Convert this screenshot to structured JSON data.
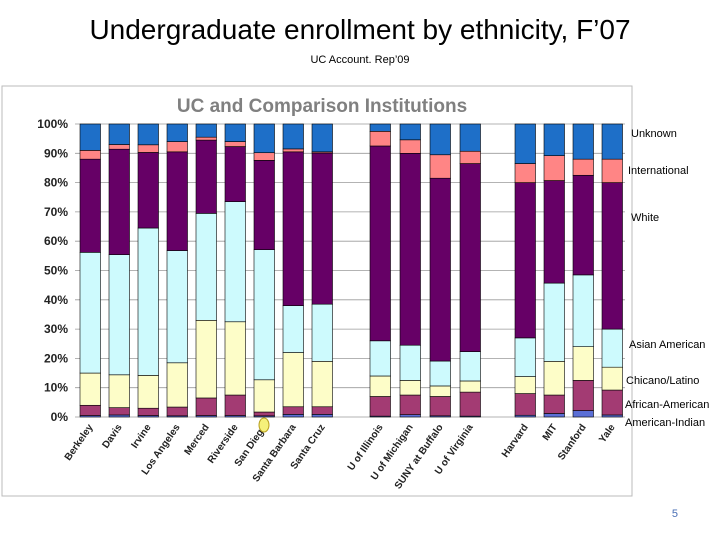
{
  "slide": {
    "title": "Undergraduate enrollment by ethnicity, F’07",
    "subtitle": "UC Account. Rep’09",
    "page_number": "5"
  },
  "chart_data": {
    "type": "bar",
    "stacked": true,
    "title": "UC and Comparison Institutions",
    "ylim": [
      0,
      100
    ],
    "yticks": [
      "0%",
      "10%",
      "20%",
      "30%",
      "40%",
      "50%",
      "60%",
      "70%",
      "80%",
      "90%",
      "100%"
    ],
    "legend_position": "right",
    "categories": [
      "Berkeley",
      "Davis",
      "Irvine",
      "Los Angeles",
      "Merced",
      "Riverside",
      "San Diego",
      "Santa Barbara",
      "Santa Cruz",
      "U of Illinois",
      "U of Michigan",
      "SUNY at Buffalo",
      "U of Virginia",
      "Harvard",
      "MIT",
      "Stanford",
      "Yale"
    ],
    "series": [
      {
        "name": "American-Indian",
        "color": "#5b6fd6",
        "values": [
          0.5,
          0.7,
          0.5,
          0.4,
          0.5,
          0.5,
          0.4,
          0.9,
          0.9,
          0.3,
          0.8,
          0.4,
          0.3,
          0.6,
          1.2,
          2.2,
          0.7
        ]
      },
      {
        "name": "African-American",
        "color": "#a33b73",
        "values": [
          3.5,
          2.5,
          2.5,
          3.0,
          6.0,
          7.0,
          1.3,
          2.6,
          2.6,
          6.7,
          6.7,
          6.6,
          8.2,
          7.4,
          6.3,
          10.3,
          8.5
        ]
      },
      {
        "name": "Chicano/Latino",
        "color": "#fdfdc8",
        "values": [
          11.0,
          11.2,
          11.2,
          15.1,
          26.5,
          25.0,
          11.0,
          18.5,
          15.5,
          7.0,
          5.0,
          3.6,
          3.8,
          5.8,
          11.5,
          11.5,
          7.8
        ]
      },
      {
        "name": "Asian American",
        "color": "#cdfafd",
        "values": [
          41.2,
          41.0,
          50.3,
          38.3,
          36.5,
          41.0,
          44.4,
          16.0,
          19.5,
          12.0,
          12.0,
          8.5,
          10.0,
          13.2,
          26.7,
          24.5,
          13.0
        ]
      },
      {
        "name": "White",
        "color": "#660066",
        "values": [
          31.8,
          36.0,
          25.8,
          33.7,
          25.0,
          18.8,
          30.5,
          52.5,
          51.6,
          66.5,
          65.5,
          62.4,
          64.2,
          53.0,
          35.0,
          34.0,
          50.0
        ]
      },
      {
        "name": "International",
        "color": "#ff8585",
        "values": [
          3.0,
          1.6,
          2.6,
          3.5,
          1.0,
          1.7,
          2.6,
          1.0,
          0.4,
          5.0,
          4.6,
          8.0,
          4.2,
          6.5,
          8.5,
          5.5,
          8.0
        ]
      },
      {
        "name": "Unknown",
        "color": "#1e6fc8",
        "values": [
          9.0,
          7.0,
          7.1,
          6.0,
          4.5,
          6.0,
          9.8,
          8.5,
          9.5,
          2.5,
          5.4,
          10.5,
          9.3,
          13.5,
          10.8,
          12.0,
          12.0
        ]
      }
    ],
    "legend_labels_order": [
      "Unknown",
      "International",
      "White",
      "Asian American",
      "Chicano/Latino",
      "African-American",
      "American-Indian"
    ]
  }
}
